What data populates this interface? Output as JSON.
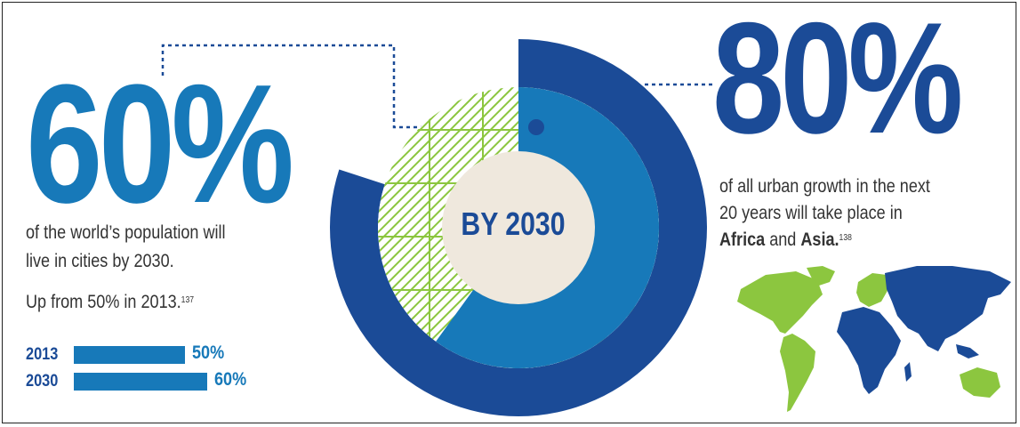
{
  "colors": {
    "dark_blue": "#1b4b97",
    "mid_blue": "#1779b9",
    "green": "#8cc63f",
    "cream": "#efe8dd"
  },
  "left": {
    "big_number": "60%",
    "line1": "of the world’s population will",
    "line2": "live in cities by 2030.",
    "note": "Up from 50% in 2013.",
    "note_ref": "137"
  },
  "center": {
    "label": "BY 2030"
  },
  "right": {
    "big_number": "80%",
    "line1": "of all urban growth in the next",
    "line2": "20 years will take place in",
    "line3_region1": "Africa",
    "line3_and": " and ",
    "line3_region2": "Asia.",
    "line3_ref": "138"
  },
  "chart_data": [
    {
      "type": "bar",
      "categories": [
        "2013",
        "2030"
      ],
      "values": [
        50,
        60
      ],
      "value_labels": [
        "50%",
        "60%"
      ]
    },
    {
      "type": "pie",
      "rings": [
        {
          "name": "60%",
          "value": 60
        },
        {
          "name": "80%",
          "value": 80
        }
      ]
    }
  ]
}
